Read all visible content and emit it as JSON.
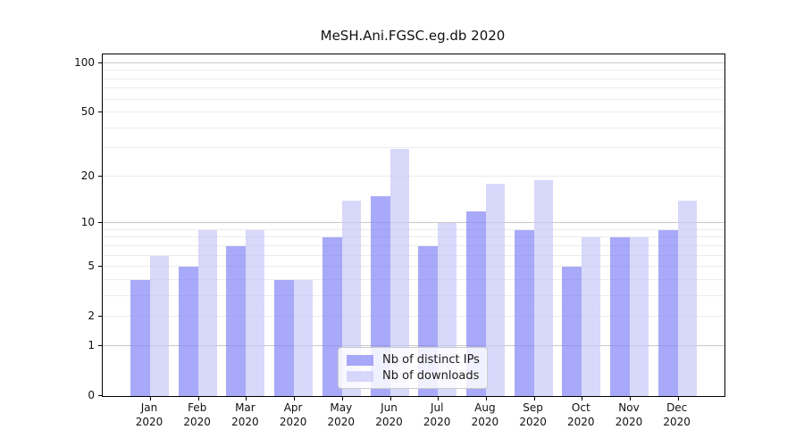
{
  "chart_data": {
    "type": "bar",
    "title": "MeSH.Ani.FGSC.eg.db 2020",
    "year": "2020",
    "categories": [
      "Jan",
      "Feb",
      "Mar",
      "Apr",
      "May",
      "Jun",
      "Jul",
      "Aug",
      "Sep",
      "Oct",
      "Nov",
      "Dec"
    ],
    "series": [
      {
        "name": "Nb of distinct IPs",
        "color": "rgba(132,132,246,0.7)",
        "color_hex": "#a9a9f9",
        "values": [
          4,
          5,
          7,
          4,
          8,
          15,
          7,
          12,
          9,
          5,
          8,
          9
        ]
      },
      {
        "name": "Nb of downloads",
        "color": "rgba(199,199,248,0.7)",
        "color_hex": "#d8d8fa",
        "values": [
          6,
          9,
          9,
          4,
          14,
          30,
          10,
          18,
          19,
          8,
          8,
          14
        ]
      }
    ],
    "xlabel": "",
    "ylabel": "",
    "yscale": "log1p",
    "ylim": [
      0,
      113
    ],
    "yticks": [
      0,
      1,
      2,
      5,
      10,
      20,
      50,
      100
    ],
    "grid": "on",
    "legend_position": "bottom-center",
    "colors": {
      "grid_minor": "#ececec",
      "grid_major": "#c9c9c9",
      "axis": "#000000",
      "text": "#1a1a1a"
    }
  }
}
